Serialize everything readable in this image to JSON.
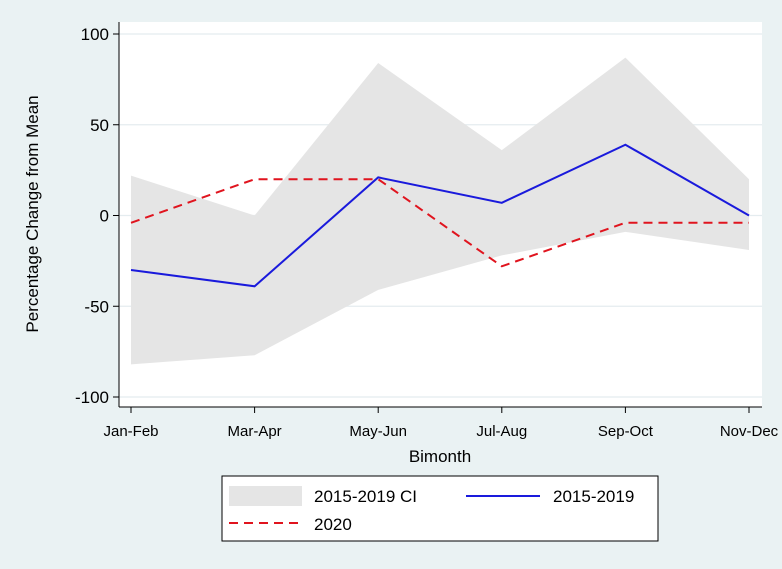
{
  "chart_data": {
    "type": "line",
    "xlabel": "Bimonth",
    "ylabel": "Percentage Change from Mean",
    "categories": [
      "Jan-Feb",
      "Mar-Apr",
      "May-Jun",
      "Jul-Aug",
      "Sep-Oct",
      "Nov-Dec"
    ],
    "ylim": [
      -100,
      100
    ],
    "yticks": [
      100,
      50,
      0,
      -50,
      -100
    ],
    "grid": true,
    "band": {
      "name": "2015-2019 CI",
      "upper": [
        22,
        0,
        84,
        36,
        87,
        20
      ],
      "lower": [
        -82,
        -77,
        -41,
        -22,
        -9,
        -19
      ],
      "color": "#e5e5e5"
    },
    "series": [
      {
        "name": "2015-2019",
        "values": [
          -30,
          -39,
          21,
          7,
          39,
          0
        ],
        "color": "#1a1adc",
        "style": "solid"
      },
      {
        "name": "2020",
        "values": [
          -4,
          20,
          20,
          -28,
          -4,
          -4
        ],
        "color": "#e0141e",
        "style": "dashed"
      }
    ],
    "legend": {
      "position": "bottom",
      "entries": [
        {
          "label": "2015-2019 CI",
          "kind": "band"
        },
        {
          "label": "2015-2019",
          "kind": "solid"
        },
        {
          "label": "2020",
          "kind": "dashed"
        }
      ]
    }
  }
}
